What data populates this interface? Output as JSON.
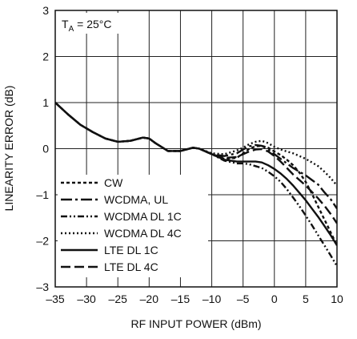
{
  "chart_data": {
    "type": "line",
    "title": "",
    "annotation": {
      "base": "T",
      "sub": "A",
      "rest": " = 25°C"
    },
    "xlabel": "RF INPUT POWER (dBm)",
    "ylabel": "LINEARITY ERROR (dB)",
    "xlim": [
      -35,
      10
    ],
    "ylim": [
      -3,
      3
    ],
    "xticks": [
      -35,
      -30,
      -25,
      -20,
      -15,
      -10,
      -5,
      0,
      5,
      10
    ],
    "xtick_labels": [
      "–35",
      "–30",
      "–25",
      "–20",
      "–15",
      "–10",
      "–5",
      "0",
      "5",
      "10"
    ],
    "yticks": [
      -3,
      -2,
      -1,
      0,
      1,
      2,
      3
    ],
    "ytick_labels": [
      "–3",
      "–2",
      "–1",
      "0",
      "1",
      "2",
      "3"
    ],
    "grid": true,
    "legend_position": "bottom-left",
    "series": [
      {
        "name": "CW",
        "dash": "4,3",
        "width": 2.4,
        "x": [
          -35,
          -33,
          -31,
          -29,
          -27,
          -25,
          -23,
          -21,
          -20,
          -19,
          -17,
          -15,
          -13,
          -12,
          -10,
          -8,
          -6,
          -5,
          -4,
          -3,
          -2,
          -1,
          0,
          1,
          2,
          3,
          4,
          5,
          6,
          7,
          8,
          9,
          10
        ],
        "y": [
          1.0,
          0.75,
          0.52,
          0.36,
          0.22,
          0.15,
          0.17,
          0.24,
          0.22,
          0.12,
          -0.05,
          -0.05,
          0.02,
          0.0,
          -0.12,
          -0.22,
          -0.2,
          -0.1,
          0.0,
          0.05,
          0.06,
          0.02,
          -0.06,
          -0.14,
          -0.24,
          -0.36,
          -0.52,
          -0.72,
          -0.98,
          -1.26,
          -1.54,
          -1.82,
          -2.1
        ]
      },
      {
        "name": "WCDMA, UL",
        "dash": "14,4,3,4",
        "width": 2.4,
        "x": [
          -35,
          -33,
          -31,
          -29,
          -27,
          -25,
          -23,
          -21,
          -20,
          -19,
          -17,
          -15,
          -13,
          -12,
          -10,
          -8,
          -6,
          -5,
          -4,
          -3,
          -2,
          -1,
          0,
          1,
          2,
          3,
          4,
          5,
          6,
          7,
          8,
          9,
          10
        ],
        "y": [
          1.0,
          0.75,
          0.52,
          0.36,
          0.22,
          0.15,
          0.17,
          0.24,
          0.22,
          0.12,
          -0.05,
          -0.05,
          0.02,
          0.0,
          -0.12,
          -0.16,
          -0.1,
          -0.02,
          0.05,
          0.08,
          0.06,
          -0.02,
          -0.12,
          -0.22,
          -0.32,
          -0.42,
          -0.5,
          -0.58,
          -0.68,
          -0.78,
          -0.95,
          -1.1,
          -1.3
        ]
      },
      {
        "name": "WCDMA DL 1C",
        "dash": "8,3,2,3,2,3",
        "width": 2.4,
        "x": [
          -35,
          -33,
          -31,
          -29,
          -27,
          -25,
          -23,
          -21,
          -20,
          -19,
          -17,
          -15,
          -13,
          -12,
          -10,
          -8,
          -6,
          -5,
          -4,
          -3,
          -2,
          -1,
          0,
          1,
          2,
          3,
          4,
          5,
          6,
          7,
          8,
          9,
          10
        ],
        "y": [
          1.0,
          0.75,
          0.52,
          0.36,
          0.22,
          0.15,
          0.17,
          0.24,
          0.22,
          0.12,
          -0.05,
          -0.05,
          0.02,
          0.0,
          -0.12,
          -0.26,
          -0.32,
          -0.32,
          -0.34,
          -0.38,
          -0.42,
          -0.5,
          -0.6,
          -0.72,
          -0.88,
          -1.06,
          -1.25,
          -1.45,
          -1.66,
          -1.88,
          -2.1,
          -2.32,
          -2.55
        ]
      },
      {
        "name": "WCDMA DL 4C",
        "dash": "2,3",
        "width": 2.4,
        "x": [
          -35,
          -33,
          -31,
          -29,
          -27,
          -25,
          -23,
          -21,
          -20,
          -19,
          -17,
          -15,
          -13,
          -12,
          -10,
          -8,
          -6,
          -5,
          -4,
          -3,
          -2,
          -1,
          0,
          1,
          2,
          3,
          4,
          5,
          6,
          7,
          8,
          9,
          10
        ],
        "y": [
          1.0,
          0.75,
          0.52,
          0.36,
          0.22,
          0.15,
          0.17,
          0.24,
          0.22,
          0.12,
          -0.05,
          -0.05,
          0.02,
          0.0,
          -0.1,
          -0.12,
          -0.04,
          0.02,
          0.1,
          0.15,
          0.17,
          0.12,
          0.04,
          -0.02,
          -0.06,
          -0.1,
          -0.16,
          -0.22,
          -0.3,
          -0.38,
          -0.5,
          -0.64,
          -0.8
        ]
      },
      {
        "name": "LTE DL 1C",
        "dash": "",
        "width": 2.4,
        "x": [
          -35,
          -33,
          -31,
          -29,
          -27,
          -25,
          -23,
          -21,
          -20,
          -19,
          -17,
          -15,
          -13,
          -12,
          -10,
          -8,
          -6,
          -5,
          -4,
          -3,
          -2,
          -1,
          0,
          1,
          2,
          3,
          4,
          5,
          6,
          7,
          8,
          9,
          10
        ],
        "y": [
          1.0,
          0.75,
          0.52,
          0.36,
          0.22,
          0.15,
          0.17,
          0.24,
          0.22,
          0.12,
          -0.05,
          -0.05,
          0.02,
          0.0,
          -0.12,
          -0.24,
          -0.28,
          -0.28,
          -0.28,
          -0.28,
          -0.3,
          -0.36,
          -0.44,
          -0.54,
          -0.66,
          -0.8,
          -0.96,
          -1.12,
          -1.3,
          -1.48,
          -1.68,
          -1.88,
          -2.1
        ]
      },
      {
        "name": "LTE DL 4C",
        "dash": "12,5",
        "width": 2.4,
        "x": [
          -35,
          -33,
          -31,
          -29,
          -27,
          -25,
          -23,
          -21,
          -20,
          -19,
          -17,
          -15,
          -13,
          -12,
          -10,
          -8,
          -6,
          -5,
          -4,
          -3,
          -2,
          -1,
          0,
          1,
          2,
          3,
          4,
          5,
          6,
          7,
          8,
          9,
          10
        ],
        "y": [
          1.0,
          0.75,
          0.52,
          0.36,
          0.22,
          0.15,
          0.17,
          0.24,
          0.22,
          0.12,
          -0.05,
          -0.05,
          0.02,
          0.0,
          -0.12,
          -0.2,
          -0.18,
          -0.12,
          -0.06,
          -0.02,
          -0.01,
          -0.06,
          -0.16,
          -0.28,
          -0.42,
          -0.56,
          -0.68,
          -0.8,
          -0.94,
          -1.08,
          -1.24,
          -1.42,
          -1.62
        ]
      }
    ]
  }
}
